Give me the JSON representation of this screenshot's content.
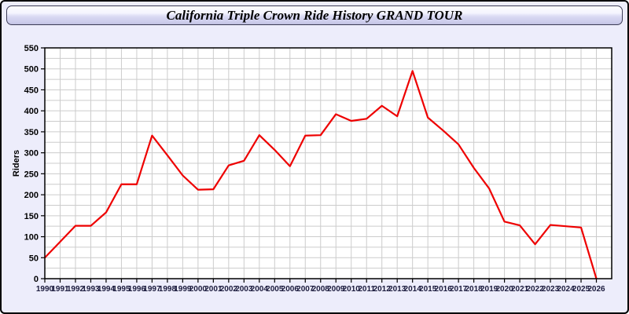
{
  "title": "California Triple Crown Ride History GRAND TOUR",
  "colors": {
    "line": "#ee0000",
    "grid": "#cccccc",
    "axis": "#000000",
    "plot_background": "#ffffff",
    "page_background": "#EDEDFB",
    "x_label_color": "#1a1a3c",
    "y_label_color": "#000000"
  },
  "chart_data": {
    "type": "line",
    "title": "California Triple Crown Ride History GRAND TOUR",
    "xlabel": "",
    "ylabel": "Riders",
    "legend": "none",
    "grid": true,
    "x": [
      1990,
      1991,
      1992,
      1993,
      1994,
      1995,
      1996,
      1997,
      1998,
      1999,
      2000,
      2001,
      2002,
      2003,
      2004,
      2005,
      2006,
      2007,
      2008,
      2009,
      2010,
      2011,
      2012,
      2013,
      2014,
      2015,
      2016,
      2017,
      2018,
      2019,
      2020,
      2021,
      2022,
      2023,
      2024,
      2025,
      2026
    ],
    "values": [
      50,
      88,
      126,
      126,
      158,
      225,
      225,
      341,
      294,
      246,
      212,
      213,
      270,
      281,
      342,
      307,
      268,
      341,
      342,
      392,
      376,
      381,
      412,
      387,
      495,
      384,
      353,
      320,
      264,
      215,
      136,
      127,
      82,
      128,
      125,
      122,
      0
    ],
    "ylim": [
      0,
      550
    ],
    "ytick_step": 50,
    "ygrid_step": 25,
    "xgrid_step": 1,
    "x_axis_extends_to": 2027
  }
}
